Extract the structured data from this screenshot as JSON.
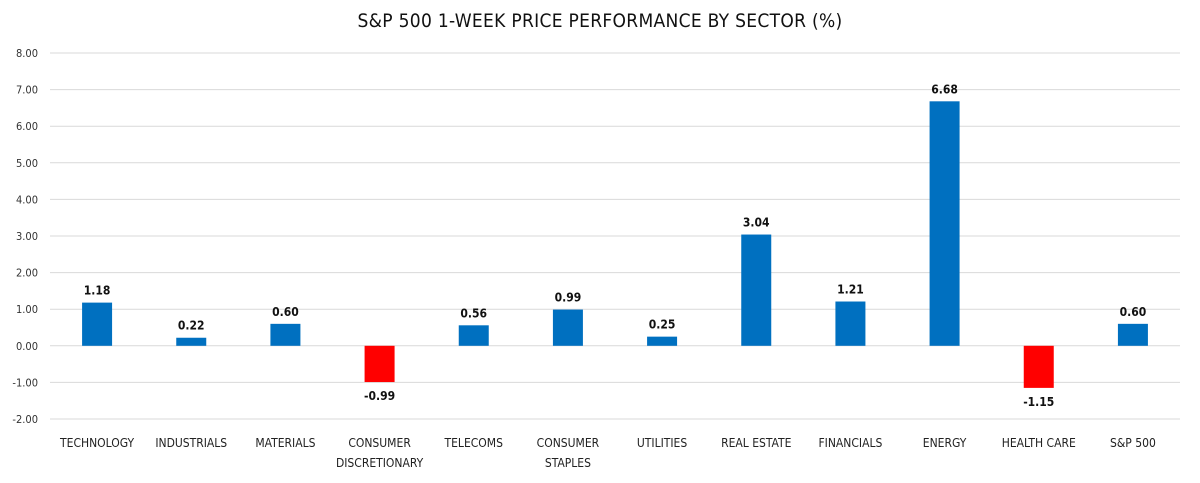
{
  "chart_data": {
    "type": "bar",
    "title": "S&P 500 1-WEEK PRICE PERFORMANCE BY SECTOR (%)",
    "xlabel": "",
    "ylabel": "",
    "categories": [
      [
        "TECHNOLOGY"
      ],
      [
        "INDUSTRIALS"
      ],
      [
        "MATERIALS"
      ],
      [
        "CONSUMER",
        "DISCRETIONARY"
      ],
      [
        "TELECOMS"
      ],
      [
        "CONSUMER",
        "STAPLES"
      ],
      [
        "UTILITIES"
      ],
      [
        "REAL ESTATE"
      ],
      [
        "FINANCIALS"
      ],
      [
        "ENERGY"
      ],
      [
        "HEALTH CARE"
      ],
      [
        "S&P 500"
      ]
    ],
    "values": [
      1.18,
      0.22,
      0.6,
      -0.99,
      0.56,
      0.99,
      0.25,
      3.04,
      1.21,
      6.68,
      -1.15,
      0.6
    ],
    "data_labels": [
      "1.18",
      "0.22",
      "0.60",
      "-0.99",
      "0.56",
      "0.99",
      "0.25",
      "3.04",
      "1.21",
      "6.68",
      "-1.15",
      "0.60"
    ],
    "ylim": [
      -2,
      8
    ],
    "yticks": [
      8,
      7,
      6,
      5,
      4,
      3,
      2,
      1,
      0,
      -1,
      -2
    ],
    "ytick_labels": [
      "8.00",
      "7.00",
      "6.00",
      "5.00",
      "4.00",
      "3.00",
      "2.00",
      "1.00",
      "0.00",
      "-1.00",
      "-2.00"
    ],
    "grid": true,
    "legend": "none",
    "colors": {
      "positive": "#0070c0",
      "negative": "#ff0000",
      "grid": "#d9d9d9"
    }
  }
}
